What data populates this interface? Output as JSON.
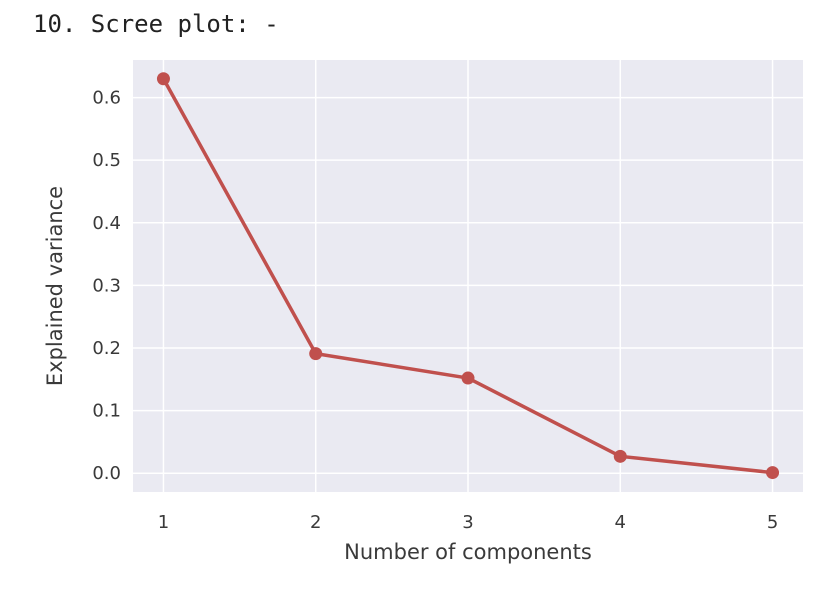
{
  "heading": "10. Scree plot: -",
  "chart_data": {
    "type": "line",
    "title": "",
    "xlabel": "Number of components",
    "ylabel": "Explained variance",
    "x": [
      1,
      2,
      3,
      4,
      5
    ],
    "series": [
      {
        "values": [
          0.63,
          0.191,
          0.152,
          0.027,
          0.001
        ],
        "color": "#c0504d"
      }
    ],
    "xticks": [
      1,
      2,
      3,
      4,
      5
    ],
    "yticks": [
      0.0,
      0.1,
      0.2,
      0.3,
      0.4,
      0.5,
      0.6
    ],
    "ytick_labels": [
      "0.0",
      "0.1",
      "0.2",
      "0.3",
      "0.4",
      "0.5",
      "0.6"
    ],
    "xtick_labels": [
      "1",
      "2",
      "3",
      "4",
      "5"
    ],
    "xlim": [
      0.8,
      5.2
    ],
    "ylim": [
      -0.03,
      0.66
    ],
    "grid": true,
    "background_color": "#eaeaf2",
    "grid_color": "#ffffff"
  }
}
